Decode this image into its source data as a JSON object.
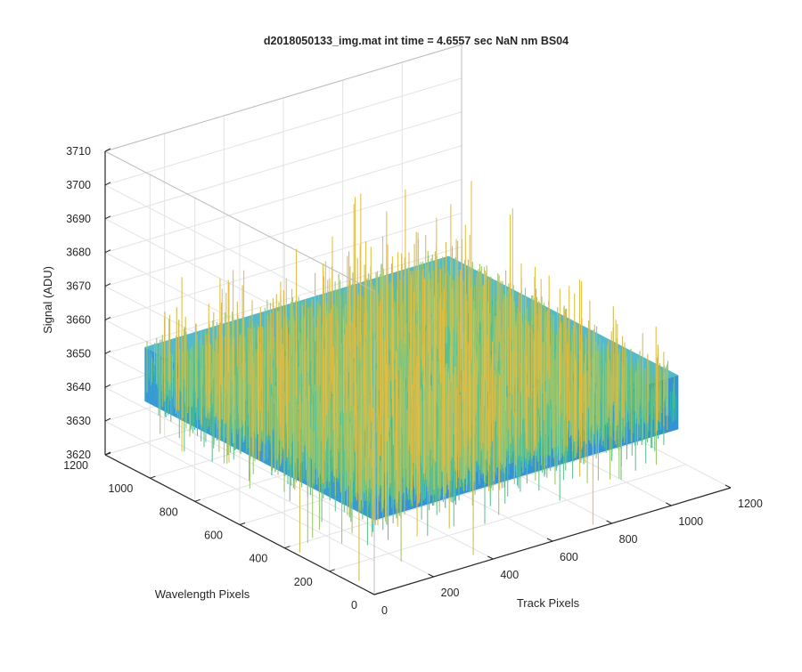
{
  "chart_data": {
    "type": "surface",
    "title": "d2018050133_img.mat int time = 4.6557 sec  NaN nm BS04",
    "xlabel": "Track Pixels",
    "ylabel": "Wavelength Pixels",
    "zlabel": "Signal (ADU)",
    "xlim": [
      0,
      1200
    ],
    "ylim": [
      0,
      1200
    ],
    "zlim": [
      3620,
      3710
    ],
    "xticks": [
      "0",
      "200",
      "400",
      "600",
      "800",
      "1000",
      "1200"
    ],
    "yticks": [
      "0",
      "200",
      "400",
      "600",
      "800",
      "1000",
      "1200"
    ],
    "zticks": [
      "3620",
      "3630",
      "3640",
      "3650",
      "3660",
      "3670",
      "3680",
      "3690",
      "3700",
      "3710"
    ],
    "data_extent": {
      "x": [
        0,
        1024
      ],
      "y": [
        0,
        1024
      ]
    },
    "signal_mean": 3650,
    "signal_typical_range": [
      3630,
      3675
    ],
    "signal_max_spike": 3700,
    "signal_min_spike": 3620,
    "grid": true,
    "colormap": [
      "#1f5fcf",
      "#1889d6",
      "#16a6cf",
      "#2bb7b3",
      "#5fc08b",
      "#9bc46a",
      "#d2b94f",
      "#e6bd3e"
    ]
  }
}
